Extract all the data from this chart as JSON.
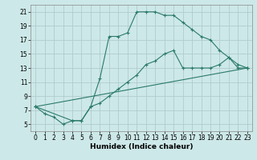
{
  "title": "",
  "xlabel": "Humidex (Indice chaleur)",
  "ylabel": "",
  "xlim": [
    -0.5,
    23.5
  ],
  "ylim": [
    4,
    22
  ],
  "yticks": [
    5,
    7,
    9,
    11,
    13,
    15,
    17,
    19,
    21
  ],
  "xticks": [
    0,
    1,
    2,
    3,
    4,
    5,
    6,
    7,
    8,
    9,
    10,
    11,
    12,
    13,
    14,
    15,
    16,
    17,
    18,
    19,
    20,
    21,
    22,
    23
  ],
  "bg_color": "#cde8e8",
  "grid_color": "#b0cccc",
  "line_color": "#2a7a6a",
  "line1_x": [
    0,
    1,
    2,
    3,
    4,
    5,
    6,
    7,
    8,
    9,
    10,
    11,
    12,
    13,
    14,
    15,
    16,
    17,
    18,
    19,
    20,
    21,
    22,
    23
  ],
  "line1_y": [
    7.5,
    6.5,
    6.0,
    5.0,
    5.5,
    5.5,
    7.5,
    11.5,
    17.5,
    17.5,
    18.0,
    21.0,
    21.0,
    21.0,
    20.5,
    20.5,
    19.5,
    18.5,
    17.5,
    17.0,
    15.5,
    14.5,
    13.0,
    13.0
  ],
  "line2_x": [
    0,
    4,
    5,
    6,
    7,
    8,
    9,
    10,
    11,
    12,
    13,
    14,
    15,
    16,
    17,
    18,
    19,
    20,
    21,
    22,
    23
  ],
  "line2_y": [
    7.5,
    5.5,
    5.5,
    7.5,
    8.0,
    9.0,
    10.0,
    11.0,
    12.0,
    13.5,
    14.0,
    15.0,
    15.5,
    13.0,
    13.0,
    13.0,
    13.0,
    13.5,
    14.5,
    13.5,
    13.0
  ],
  "line3_x": [
    0,
    23
  ],
  "line3_y": [
    7.5,
    13.0
  ],
  "tick_fontsize": 5.5,
  "xlabel_fontsize": 6.5
}
